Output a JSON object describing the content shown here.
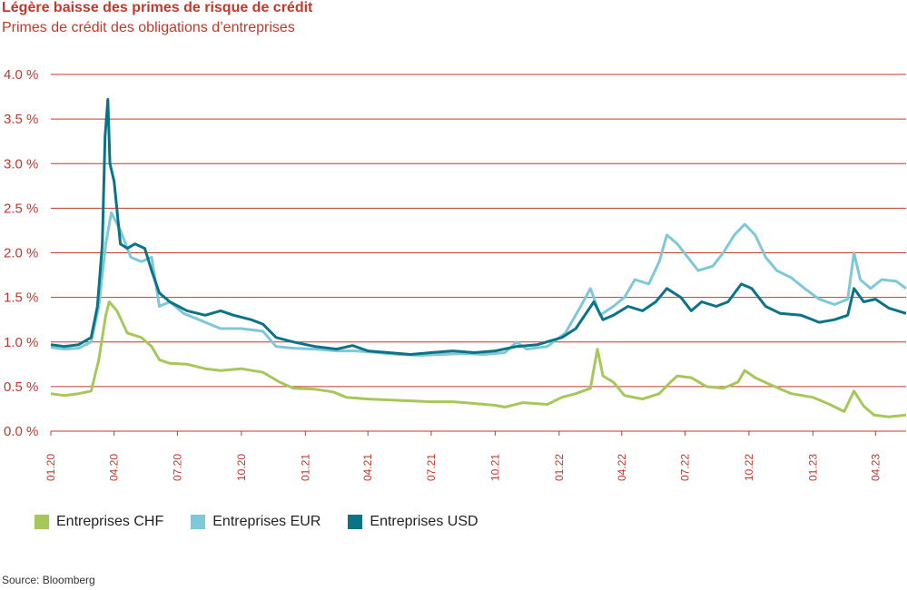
{
  "header": {
    "title": "Légère baisse des primes de risque de crédit",
    "subtitle": "Primes de crédit des obligations d’entreprises"
  },
  "source": "Source: Bloomberg",
  "colors": {
    "grid": "#c0392b",
    "axis_text": "#c0392b",
    "CHF": "#a6c75a",
    "EUR": "#7ec8d8",
    "USD": "#0b7386"
  },
  "chart_data": {
    "type": "line",
    "title": "Légère baisse des primes de risque de crédit",
    "subtitle": "Primes de crédit des obligations d’entreprises",
    "xlabel": "",
    "ylabel": "",
    "ylim": [
      0,
      4.0
    ],
    "yticks": [
      "0.0 %",
      "0.5 %",
      "1.0 %",
      "1.5 %",
      "2.0 %",
      "2.5 %",
      "3.0 %",
      "3.5 %",
      "4.0 %"
    ],
    "xticks": [
      "01.20",
      "04.20",
      "07.20",
      "10.20",
      "01.21",
      "04.21",
      "07.21",
      "10.21",
      "01.22",
      "04.22",
      "07.22",
      "10.22",
      "01.23",
      "04.23"
    ],
    "x_range": [
      "2020-01-01",
      "2023-05-15"
    ],
    "grid": true,
    "legend": "bottom-left",
    "series": [
      {
        "name": "Entreprises CHF",
        "color": "#a6c75a",
        "points": [
          [
            "2020-01-01",
            0.42
          ],
          [
            "2020-01-20",
            0.4
          ],
          [
            "2020-02-10",
            0.42
          ],
          [
            "2020-02-28",
            0.45
          ],
          [
            "2020-03-10",
            0.8
          ],
          [
            "2020-03-20",
            1.3
          ],
          [
            "2020-03-25",
            1.45
          ],
          [
            "2020-04-05",
            1.35
          ],
          [
            "2020-04-20",
            1.1
          ],
          [
            "2020-05-10",
            1.05
          ],
          [
            "2020-05-25",
            0.95
          ],
          [
            "2020-06-05",
            0.8
          ],
          [
            "2020-06-20",
            0.76
          ],
          [
            "2020-07-15",
            0.75
          ],
          [
            "2020-08-10",
            0.7
          ],
          [
            "2020-09-01",
            0.68
          ],
          [
            "2020-10-01",
            0.7
          ],
          [
            "2020-11-01",
            0.66
          ],
          [
            "2020-11-25",
            0.55
          ],
          [
            "2020-12-15",
            0.48
          ],
          [
            "2021-01-15",
            0.47
          ],
          [
            "2021-02-10",
            0.44
          ],
          [
            "2021-03-01",
            0.38
          ],
          [
            "2021-04-01",
            0.36
          ],
          [
            "2021-05-01",
            0.35
          ],
          [
            "2021-06-01",
            0.34
          ],
          [
            "2021-07-01",
            0.33
          ],
          [
            "2021-08-01",
            0.33
          ],
          [
            "2021-09-01",
            0.31
          ],
          [
            "2021-10-01",
            0.29
          ],
          [
            "2021-10-15",
            0.27
          ],
          [
            "2021-11-10",
            0.32
          ],
          [
            "2021-12-15",
            0.3
          ],
          [
            "2022-01-05",
            0.38
          ],
          [
            "2022-01-25",
            0.42
          ],
          [
            "2022-02-15",
            0.48
          ],
          [
            "2022-02-25",
            0.92
          ],
          [
            "2022-03-05",
            0.62
          ],
          [
            "2022-03-20",
            0.55
          ],
          [
            "2022-04-05",
            0.4
          ],
          [
            "2022-05-01",
            0.36
          ],
          [
            "2022-05-25",
            0.42
          ],
          [
            "2022-06-10",
            0.55
          ],
          [
            "2022-06-20",
            0.62
          ],
          [
            "2022-07-10",
            0.6
          ],
          [
            "2022-08-01",
            0.5
          ],
          [
            "2022-08-25",
            0.48
          ],
          [
            "2022-09-15",
            0.55
          ],
          [
            "2022-09-25",
            0.68
          ],
          [
            "2022-10-10",
            0.6
          ],
          [
            "2022-11-01",
            0.52
          ],
          [
            "2022-12-01",
            0.42
          ],
          [
            "2023-01-01",
            0.38
          ],
          [
            "2023-01-25",
            0.3
          ],
          [
            "2023-02-15",
            0.22
          ],
          [
            "2023-03-01",
            0.45
          ],
          [
            "2023-03-15",
            0.28
          ],
          [
            "2023-03-30",
            0.18
          ],
          [
            "2023-04-20",
            0.16
          ],
          [
            "2023-05-15",
            0.18
          ]
        ]
      },
      {
        "name": "Entreprises EUR",
        "color": "#7ec8d8",
        "points": [
          [
            "2020-01-01",
            0.94
          ],
          [
            "2020-01-20",
            0.92
          ],
          [
            "2020-02-10",
            0.93
          ],
          [
            "2020-02-28",
            1.0
          ],
          [
            "2020-03-10",
            1.4
          ],
          [
            "2020-03-20",
            2.1
          ],
          [
            "2020-03-28",
            2.45
          ],
          [
            "2020-04-10",
            2.25
          ],
          [
            "2020-04-25",
            1.95
          ],
          [
            "2020-05-10",
            1.9
          ],
          [
            "2020-05-25",
            1.95
          ],
          [
            "2020-06-05",
            1.4
          ],
          [
            "2020-06-20",
            1.45
          ],
          [
            "2020-07-10",
            1.32
          ],
          [
            "2020-08-01",
            1.25
          ],
          [
            "2020-09-01",
            1.15
          ],
          [
            "2020-10-01",
            1.15
          ],
          [
            "2020-11-01",
            1.12
          ],
          [
            "2020-11-20",
            0.95
          ],
          [
            "2020-12-15",
            0.93
          ],
          [
            "2021-01-15",
            0.92
          ],
          [
            "2021-02-15",
            0.9
          ],
          [
            "2021-03-15",
            0.9
          ],
          [
            "2021-04-15",
            0.88
          ],
          [
            "2021-05-15",
            0.86
          ],
          [
            "2021-06-15",
            0.85
          ],
          [
            "2021-07-15",
            0.86
          ],
          [
            "2021-08-15",
            0.87
          ],
          [
            "2021-09-15",
            0.86
          ],
          [
            "2021-10-15",
            0.88
          ],
          [
            "2021-11-01",
            1.0
          ],
          [
            "2021-11-15",
            0.92
          ],
          [
            "2021-12-15",
            0.95
          ],
          [
            "2022-01-10",
            1.1
          ],
          [
            "2022-02-01",
            1.4
          ],
          [
            "2022-02-15",
            1.6
          ],
          [
            "2022-03-01",
            1.3
          ],
          [
            "2022-03-20",
            1.4
          ],
          [
            "2022-04-05",
            1.5
          ],
          [
            "2022-04-20",
            1.7
          ],
          [
            "2022-05-10",
            1.65
          ],
          [
            "2022-05-25",
            1.9
          ],
          [
            "2022-06-05",
            2.2
          ],
          [
            "2022-06-20",
            2.1
          ],
          [
            "2022-07-05",
            1.95
          ],
          [
            "2022-07-20",
            1.8
          ],
          [
            "2022-08-10",
            1.85
          ],
          [
            "2022-08-25",
            2.0
          ],
          [
            "2022-09-10",
            2.2
          ],
          [
            "2022-09-25",
            2.32
          ],
          [
            "2022-10-10",
            2.2
          ],
          [
            "2022-10-25",
            1.95
          ],
          [
            "2022-11-10",
            1.8
          ],
          [
            "2022-12-01",
            1.72
          ],
          [
            "2022-12-20",
            1.6
          ],
          [
            "2023-01-10",
            1.48
          ],
          [
            "2023-02-01",
            1.42
          ],
          [
            "2023-02-20",
            1.48
          ],
          [
            "2023-03-01",
            2.0
          ],
          [
            "2023-03-10",
            1.7
          ],
          [
            "2023-03-25",
            1.6
          ],
          [
            "2023-04-10",
            1.7
          ],
          [
            "2023-05-01",
            1.68
          ],
          [
            "2023-05-15",
            1.6
          ]
        ]
      },
      {
        "name": "Entreprises USD",
        "color": "#0b7386",
        "points": [
          [
            "2020-01-01",
            0.97
          ],
          [
            "2020-01-20",
            0.95
          ],
          [
            "2020-02-10",
            0.97
          ],
          [
            "2020-02-28",
            1.05
          ],
          [
            "2020-03-08",
            1.4
          ],
          [
            "2020-03-15",
            2.1
          ],
          [
            "2020-03-19",
            3.3
          ],
          [
            "2020-03-23",
            3.72
          ],
          [
            "2020-03-26",
            3.0
          ],
          [
            "2020-04-01",
            2.8
          ],
          [
            "2020-04-10",
            2.1
          ],
          [
            "2020-04-20",
            2.05
          ],
          [
            "2020-05-01",
            2.1
          ],
          [
            "2020-05-15",
            2.05
          ],
          [
            "2020-05-25",
            1.8
          ],
          [
            "2020-06-05",
            1.55
          ],
          [
            "2020-06-20",
            1.45
          ],
          [
            "2020-07-15",
            1.35
          ],
          [
            "2020-08-10",
            1.3
          ],
          [
            "2020-09-01",
            1.35
          ],
          [
            "2020-09-20",
            1.3
          ],
          [
            "2020-10-15",
            1.25
          ],
          [
            "2020-11-01",
            1.2
          ],
          [
            "2020-11-20",
            1.05
          ],
          [
            "2020-12-15",
            1.0
          ],
          [
            "2021-01-15",
            0.95
          ],
          [
            "2021-02-15",
            0.92
          ],
          [
            "2021-03-10",
            0.96
          ],
          [
            "2021-04-01",
            0.9
          ],
          [
            "2021-05-01",
            0.88
          ],
          [
            "2021-06-01",
            0.86
          ],
          [
            "2021-07-01",
            0.88
          ],
          [
            "2021-08-01",
            0.9
          ],
          [
            "2021-09-01",
            0.88
          ],
          [
            "2021-10-01",
            0.9
          ],
          [
            "2021-11-01",
            0.95
          ],
          [
            "2021-12-01",
            0.97
          ],
          [
            "2022-01-05",
            1.05
          ],
          [
            "2022-01-25",
            1.15
          ],
          [
            "2022-02-20",
            1.45
          ],
          [
            "2022-03-05",
            1.25
          ],
          [
            "2022-03-20",
            1.3
          ],
          [
            "2022-04-10",
            1.4
          ],
          [
            "2022-05-01",
            1.35
          ],
          [
            "2022-05-20",
            1.45
          ],
          [
            "2022-06-05",
            1.6
          ],
          [
            "2022-06-25",
            1.5
          ],
          [
            "2022-07-10",
            1.35
          ],
          [
            "2022-07-25",
            1.45
          ],
          [
            "2022-08-15",
            1.4
          ],
          [
            "2022-09-01",
            1.45
          ],
          [
            "2022-09-20",
            1.65
          ],
          [
            "2022-10-05",
            1.6
          ],
          [
            "2022-10-25",
            1.4
          ],
          [
            "2022-11-15",
            1.32
          ],
          [
            "2022-12-15",
            1.3
          ],
          [
            "2023-01-10",
            1.22
          ],
          [
            "2023-02-01",
            1.25
          ],
          [
            "2023-02-20",
            1.3
          ],
          [
            "2023-03-01",
            1.6
          ],
          [
            "2023-03-15",
            1.45
          ],
          [
            "2023-04-01",
            1.48
          ],
          [
            "2023-04-20",
            1.38
          ],
          [
            "2023-05-15",
            1.32
          ]
        ]
      }
    ]
  }
}
